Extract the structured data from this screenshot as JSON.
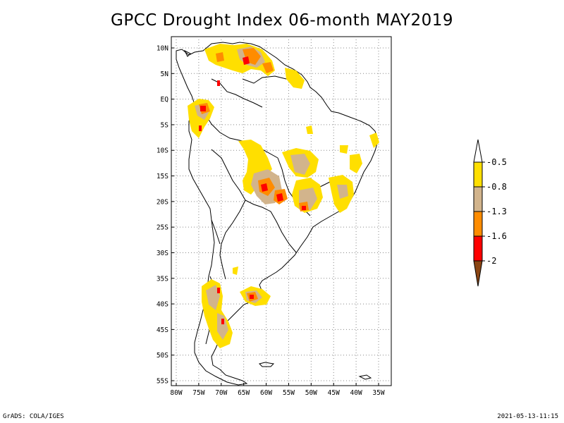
{
  "title": "GPCC Drought Index 06-month MAY2019",
  "footer": {
    "left": "GrADS: COLA/IGES",
    "right": "2021-05-13-11:15"
  },
  "map": {
    "lat_labels": [
      "10N",
      "5N",
      "EQ",
      "5S",
      "10S",
      "15S",
      "20S",
      "25S",
      "30S",
      "35S",
      "40S",
      "45S",
      "50S",
      "55S"
    ],
    "lon_labels": [
      "80W",
      "75W",
      "70W",
      "65W",
      "60W",
      "55W",
      "50W",
      "45W",
      "40W",
      "35W"
    ],
    "grid": "dotted"
  },
  "legend": {
    "labels": [
      "-0.5",
      "-0.8",
      "-1.3",
      "-1.6",
      "-2"
    ],
    "colors": [
      "#ffdf00",
      "#d2b48c",
      "#ff8c00",
      "#ff0000",
      "#8b4513"
    ]
  }
}
